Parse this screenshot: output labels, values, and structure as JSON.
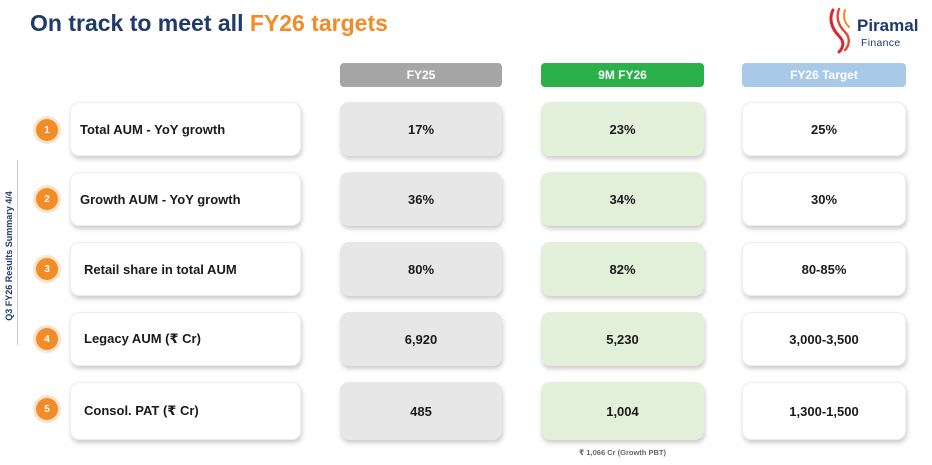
{
  "title": {
    "prefix": "On track to meet all ",
    "highlight": "FY26 targets"
  },
  "logo": {
    "name": "Piramal",
    "sub": "Finance"
  },
  "side_label": "Q3 FY26 Results Summary  4/4",
  "headers": {
    "fy25": "FY25",
    "nine_m": "9M FY26",
    "target": "FY26 Target"
  },
  "rows": [
    {
      "num": "1",
      "label": "Total AUM - YoY growth",
      "fy25": "17%",
      "nine_m": "23%",
      "target": "25%"
    },
    {
      "num": "2",
      "label": "Growth AUM - YoY growth",
      "fy25": "36%",
      "nine_m": "34%",
      "target": "30%"
    },
    {
      "num": "3",
      "label": "Retail share in total AUM",
      "fy25": "80%",
      "nine_m": "82%",
      "target": "80-85%"
    },
    {
      "num": "4",
      "label": "Legacy AUM (₹ Cr)",
      "fy25": "6,920",
      "nine_m": "5,230",
      "target": "3,000-3,500"
    },
    {
      "num": "5",
      "label": "Consol. PAT (₹ Cr)",
      "fy25": "485",
      "nine_m": "1,004",
      "target": "1,300-1,500"
    }
  ],
  "footnote": "₹ 1,066 Cr (Growth PBT)",
  "colors": {
    "navy": "#1f3a6b",
    "orange": "#f28c28",
    "green": "#2bb04a",
    "grey": "#a6a6a6",
    "light_blue": "#a9c9e9",
    "pale_green": "#e2efd9",
    "pale_grey": "#e7e7e7"
  },
  "icons": {
    "logo": "piramal-logo-icon"
  }
}
